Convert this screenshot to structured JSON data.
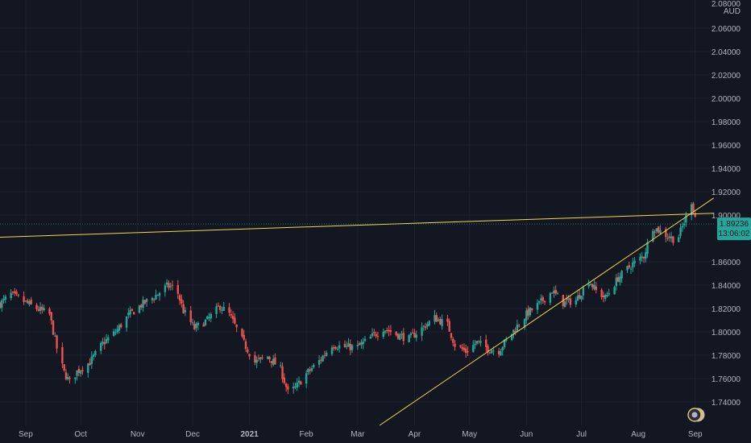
{
  "chart_data": {
    "type": "candlestick",
    "currency": "AUD",
    "y_axis": {
      "range": [
        1.72,
        2.08
      ],
      "ticks": [
        "2.06000",
        "2.04000",
        "2.02000",
        "2.00000",
        "1.98000",
        "1.96000",
        "1.94000",
        "1.92000",
        "1.90000",
        "1.86000",
        "1.84000",
        "1.82000",
        "1.80000",
        "1.78000",
        "1.76000",
        "1.74000"
      ],
      "top_tick_partial": "2.08000"
    },
    "x_axis": {
      "labels": [
        "Sep",
        "Oct",
        "Nov",
        "Dec",
        "2021",
        "Feb",
        "Mar",
        "Apr",
        "May",
        "Jun",
        "Jul",
        "Aug",
        "Sep"
      ],
      "bold_labels": [
        "2021"
      ]
    },
    "last_price": {
      "value": "1.89236",
      "countdown": "13:06:02",
      "color": "#26a69a"
    },
    "colors": {
      "up": "#26a69a",
      "down": "#ef5350",
      "trendline": "#f2d94e",
      "background": "#131722",
      "axis_text": "#b2b5be"
    },
    "trendlines": [
      {
        "name": "resistance-line",
        "from": [
          "2020-08-18",
          1.881
        ],
        "to": [
          "2021-09-01",
          1.894
        ]
      },
      {
        "name": "support-line",
        "from": [
          "2021-03-13",
          1.72
        ],
        "to": [
          "2021-09-01",
          1.907
        ]
      }
    ],
    "close_path": [
      [
        "2020-08-18",
        1.824
      ],
      [
        "2020-08-24",
        1.832
      ],
      [
        "2020-08-31",
        1.826
      ],
      [
        "2020-09-07",
        1.82
      ],
      [
        "2020-09-14",
        1.815
      ],
      [
        "2020-09-18",
        1.786
      ],
      [
        "2020-09-22",
        1.765
      ],
      [
        "2020-09-25",
        1.757
      ],
      [
        "2020-09-29",
        1.766
      ],
      [
        "2020-10-06",
        1.774
      ],
      [
        "2020-10-13",
        1.79
      ],
      [
        "2020-10-20",
        1.8
      ],
      [
        "2020-10-27",
        1.814
      ],
      [
        "2020-11-03",
        1.823
      ],
      [
        "2020-11-10",
        1.83
      ],
      [
        "2020-11-17",
        1.839
      ],
      [
        "2020-11-22",
        1.838
      ],
      [
        "2020-11-26",
        1.818
      ],
      [
        "2020-12-02",
        1.803
      ],
      [
        "2020-12-09",
        1.81
      ],
      [
        "2020-12-16",
        1.822
      ],
      [
        "2020-12-21",
        1.815
      ],
      [
        "2020-12-28",
        1.793
      ],
      [
        "2021-01-04",
        1.774
      ],
      [
        "2021-01-11",
        1.779
      ],
      [
        "2021-01-18",
        1.768
      ],
      [
        "2021-01-22",
        1.748
      ],
      [
        "2021-01-26",
        1.752
      ],
      [
        "2021-02-01",
        1.764
      ],
      [
        "2021-02-08",
        1.775
      ],
      [
        "2021-02-15",
        1.789
      ],
      [
        "2021-02-22",
        1.787
      ],
      [
        "2021-03-01",
        1.787
      ],
      [
        "2021-03-08",
        1.795
      ],
      [
        "2021-03-15",
        1.803
      ],
      [
        "2021-03-22",
        1.798
      ],
      [
        "2021-03-29",
        1.794
      ],
      [
        "2021-04-05",
        1.803
      ],
      [
        "2021-04-12",
        1.812
      ],
      [
        "2021-04-19",
        1.806
      ],
      [
        "2021-04-23",
        1.789
      ],
      [
        "2021-04-29",
        1.783
      ],
      [
        "2021-05-05",
        1.791
      ],
      [
        "2021-05-12",
        1.785
      ],
      [
        "2021-05-17",
        1.784
      ],
      [
        "2021-05-24",
        1.799
      ],
      [
        "2021-06-01",
        1.815
      ],
      [
        "2021-06-08",
        1.824
      ],
      [
        "2021-06-15",
        1.835
      ],
      [
        "2021-06-21",
        1.825
      ],
      [
        "2021-06-28",
        1.827
      ],
      [
        "2021-07-05",
        1.844
      ],
      [
        "2021-07-09",
        1.835
      ],
      [
        "2021-07-14",
        1.829
      ],
      [
        "2021-07-21",
        1.846
      ],
      [
        "2021-07-28",
        1.857
      ],
      [
        "2021-08-04",
        1.865
      ],
      [
        "2021-08-09",
        1.89
      ],
      [
        "2021-08-16",
        1.883
      ],
      [
        "2021-08-22",
        1.878
      ],
      [
        "2021-08-27",
        1.898
      ],
      [
        "2021-08-30",
        1.912
      ],
      [
        "2021-09-02",
        1.892
      ]
    ]
  },
  "watermark_icon": "tradingview-logo-icon"
}
